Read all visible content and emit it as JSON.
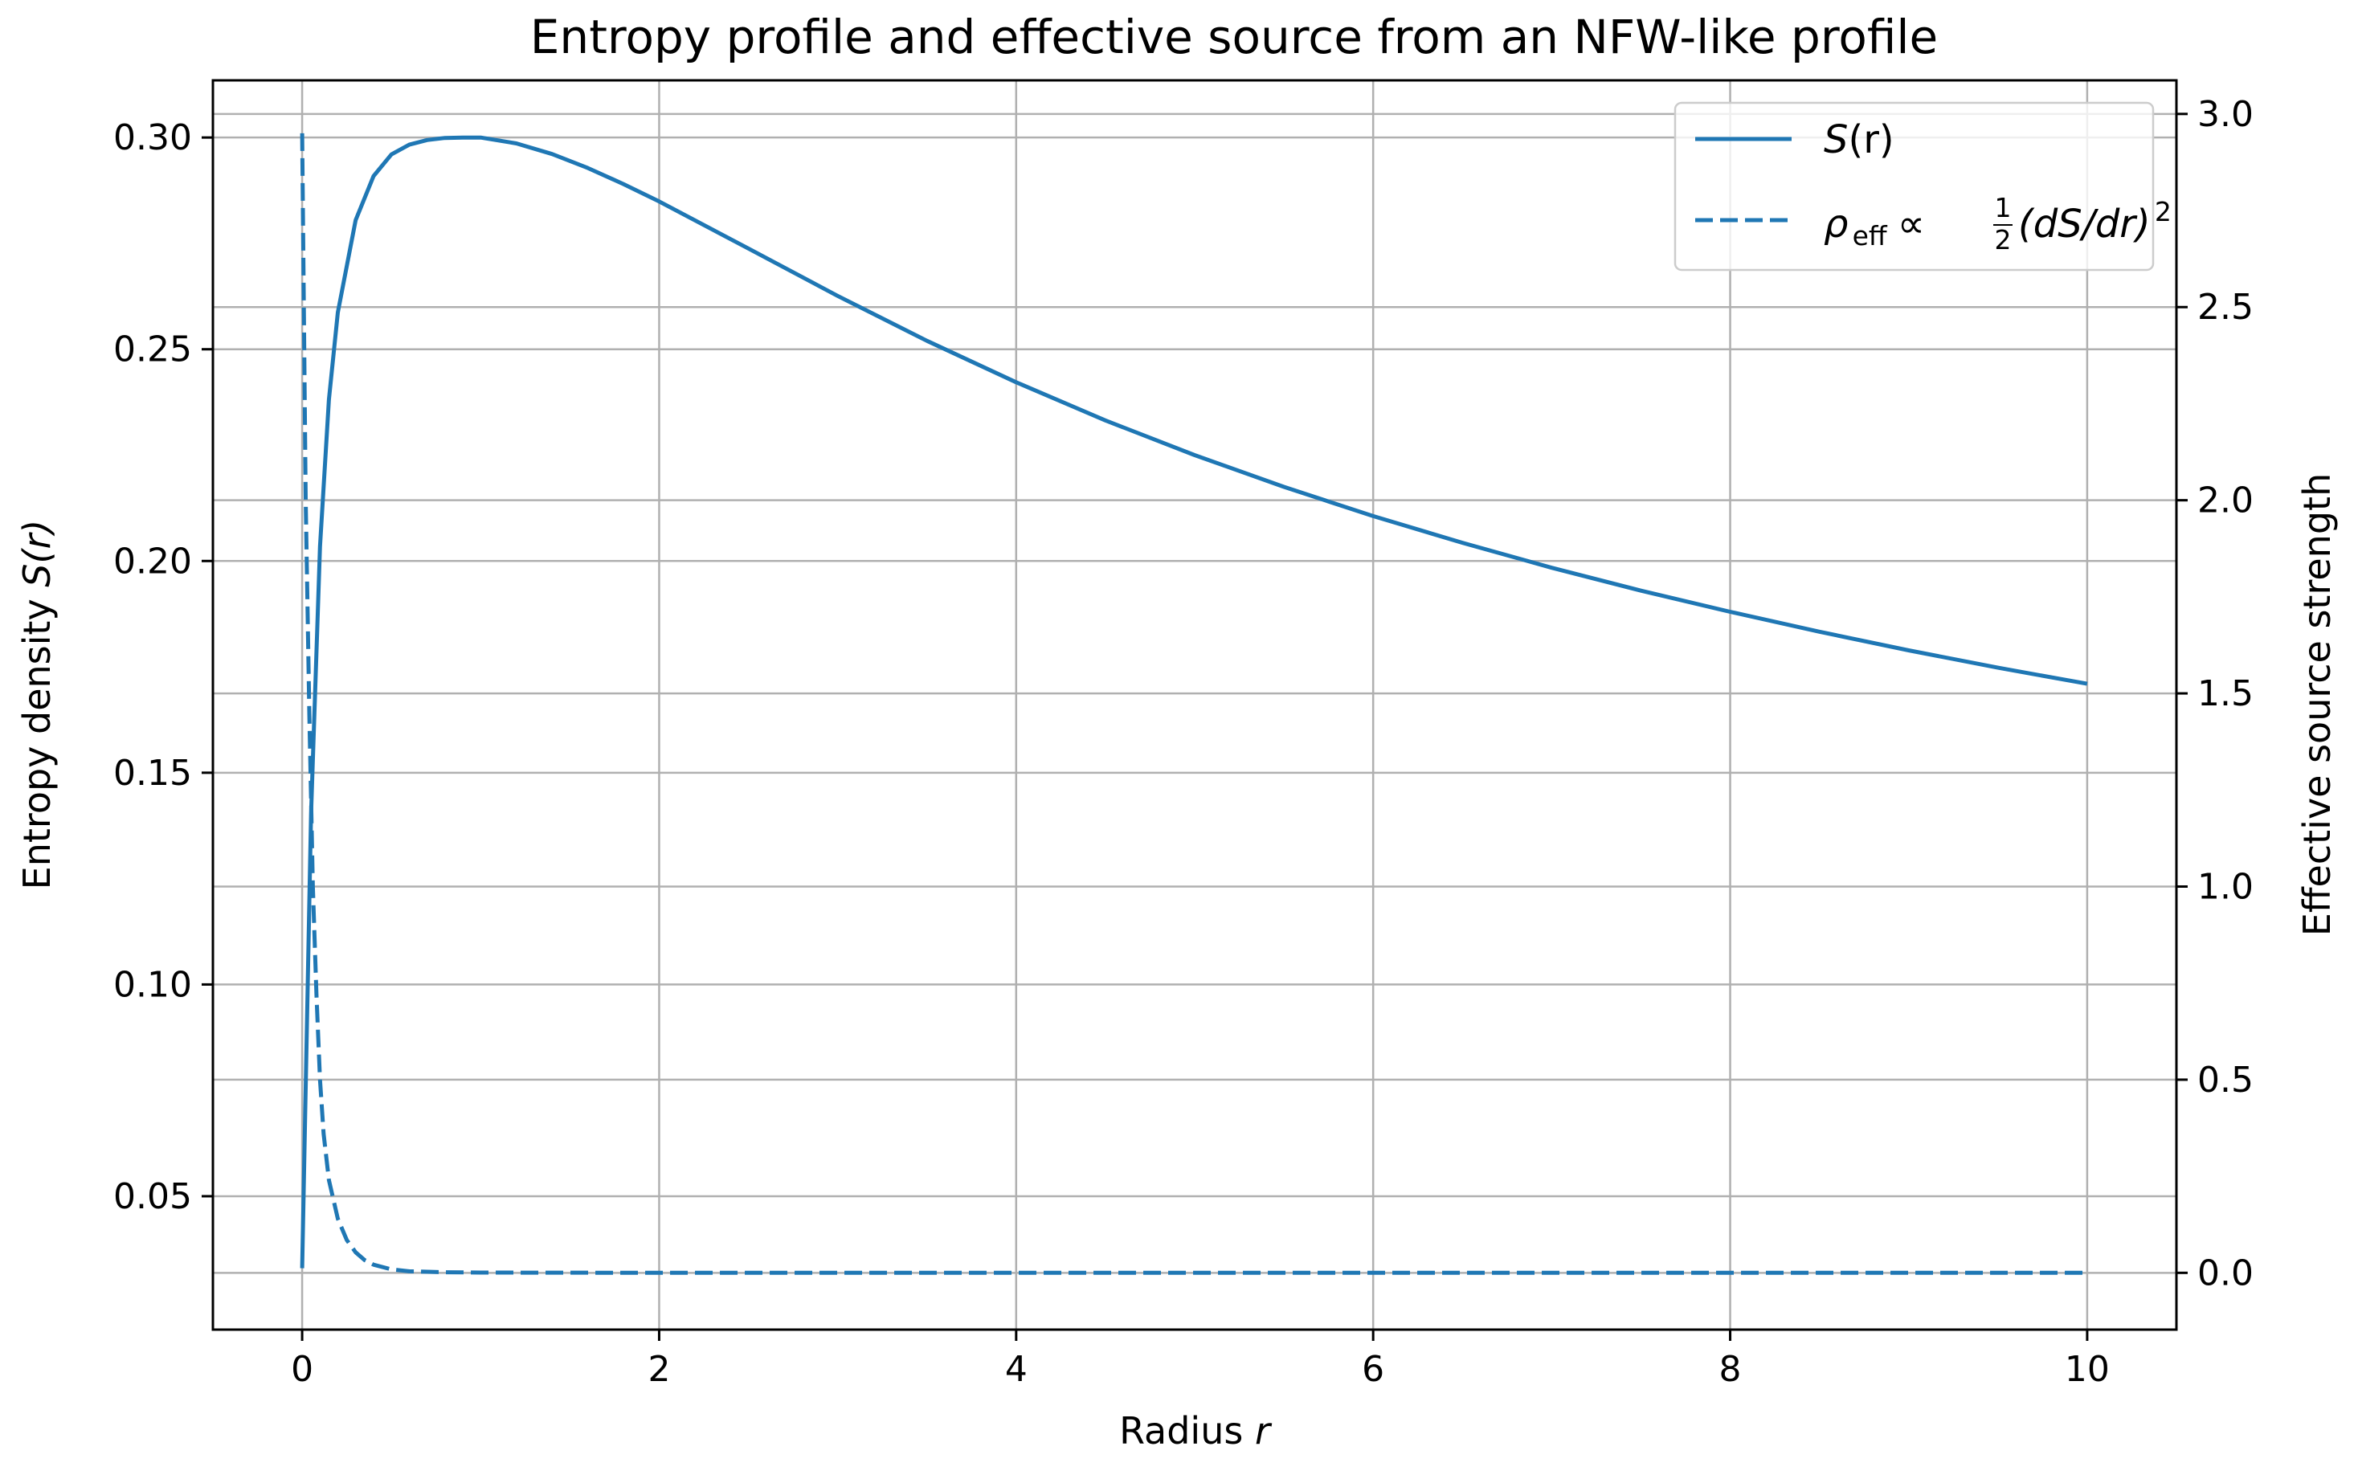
{
  "chart_data": {
    "type": "line",
    "title": "Entropy profile and effective source from an NFW-like profile",
    "xlabel": "Radius",
    "xlabel_var": "r",
    "ylabel_left": "Entropy density",
    "ylabel_left_var": "S(r)",
    "ylabel_right": "Effective source strength",
    "xlim": [
      -0.5,
      10.5
    ],
    "ylim_left": [
      0.0185,
      0.3135
    ],
    "ylim_right": [
      -0.147,
      3.087
    ],
    "xticks": [
      0,
      2,
      4,
      6,
      8,
      10
    ],
    "yticks_left": [
      0.05,
      0.1,
      0.15,
      0.2,
      0.25,
      0.3
    ],
    "yticks_right": [
      0.0,
      0.5,
      1.0,
      1.5,
      2.0,
      2.5,
      3.0
    ],
    "xtick_labels": [
      "0",
      "2",
      "4",
      "6",
      "8",
      "10"
    ],
    "ytick_labels_left": [
      "0.05",
      "0.10",
      "0.15",
      "0.20",
      "0.25",
      "0.30"
    ],
    "ytick_labels_right": [
      "0.0",
      "0.5",
      "1.0",
      "1.5",
      "2.0",
      "2.5",
      "3.0"
    ],
    "grid": true,
    "legend_position": "top-right",
    "series": [
      {
        "name": "S(r)",
        "axis": "left",
        "style": "solid",
        "color": "#1f77b4",
        "x": [
          0.0,
          0.05,
          0.1,
          0.15,
          0.2,
          0.3,
          0.4,
          0.5,
          0.6,
          0.7,
          0.8,
          0.9,
          1.0,
          1.2,
          1.4,
          1.6,
          1.8,
          2.0,
          2.5,
          3.0,
          3.5,
          4.0,
          4.5,
          5.0,
          5.5,
          6.0,
          6.5,
          7.0,
          7.5,
          8.0,
          8.5,
          9.0,
          9.5,
          10.0
        ],
        "y": [
          0.033,
          0.1405,
          0.2034,
          0.2381,
          0.2587,
          0.2805,
          0.2909,
          0.296,
          0.2983,
          0.2994,
          0.2999,
          0.3,
          0.3,
          0.2986,
          0.2961,
          0.2928,
          0.289,
          0.2849,
          0.2738,
          0.2626,
          0.252,
          0.2422,
          0.2332,
          0.225,
          0.2175,
          0.2106,
          0.2043,
          0.1984,
          0.193,
          0.188,
          0.1833,
          0.1789,
          0.1748,
          0.171
        ]
      },
      {
        "name": "ρ_eff ∝ ½(dS/dr)²",
        "axis": "right",
        "style": "dashed",
        "color": "#1f77b4",
        "x": [
          0.0,
          0.02,
          0.04,
          0.06,
          0.08,
          0.1,
          0.12,
          0.15,
          0.2,
          0.25,
          0.3,
          0.35,
          0.4,
          0.5,
          0.6,
          0.8,
          1.0,
          2.0,
          4.0,
          6.0,
          8.0,
          10.0
        ],
        "y": [
          2.95,
          2.0,
          1.45,
          1.0,
          0.72,
          0.5,
          0.36,
          0.24,
          0.14,
          0.085,
          0.053,
          0.033,
          0.021,
          0.009,
          0.004,
          0.0015,
          0.0006,
          0.0001,
          0.0,
          0.0,
          0.0,
          0.0
        ]
      }
    ]
  },
  "legend": {
    "s_label": "S",
    "s_paren": "(r)",
    "rho_sym": "ρ",
    "rho_sub": "eff",
    "rho_prop": "∝",
    "frac_num": "1",
    "frac_den": "2",
    "rho_expr": "(dS/dr)",
    "rho_sup": "2"
  }
}
